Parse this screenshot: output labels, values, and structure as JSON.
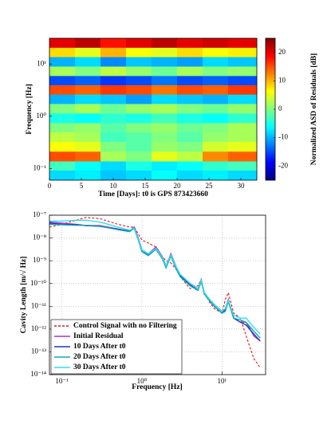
{
  "chart_data": [
    {
      "type": "heatmap",
      "xlabel": "Time [Days]: t0 is GPS 873423660",
      "ylabel": "Frequency [Hz]",
      "colorbar_label": "Normalized ASD of Residuals [dB]",
      "x": [
        2,
        6,
        10,
        14,
        18,
        22,
        26,
        30
      ],
      "y": [
        25.1,
        16.6,
        11,
        7.2,
        4.8,
        3.2,
        2.1,
        1.4,
        0.91,
        0.6,
        0.4,
        0.26,
        0.17,
        0.11,
        0.076
      ],
      "z": [
        [
          20,
          22,
          18,
          20,
          22,
          20,
          21,
          20
        ],
        [
          8,
          5,
          10,
          6,
          5,
          8,
          6,
          7
        ],
        [
          -10,
          -8,
          -12,
          -9,
          -10,
          -11,
          -8,
          -9
        ],
        [
          2,
          0,
          3,
          1,
          -1,
          2,
          0,
          1
        ],
        [
          -15,
          -14,
          -16,
          -15,
          -13,
          -15,
          -14,
          -15
        ],
        [
          15,
          14,
          16,
          15,
          13,
          15,
          14,
          16
        ],
        [
          -10,
          -8,
          -9,
          -11,
          -8,
          -9,
          -10,
          -8
        ],
        [
          0,
          2,
          -1,
          1,
          2,
          0,
          -1,
          1
        ],
        [
          -5,
          -6,
          -4,
          -5,
          -3,
          -5,
          -6,
          -4
        ],
        [
          0,
          1,
          -2,
          0,
          1,
          -1,
          0,
          2
        ],
        [
          3,
          2,
          -3,
          -2,
          0,
          -2,
          1,
          2
        ],
        [
          6,
          5,
          0,
          -2,
          1,
          0,
          4,
          5
        ],
        [
          15,
          14,
          2,
          0,
          5,
          3,
          12,
          14
        ],
        [
          -3,
          -6,
          -8,
          -5,
          -7,
          -6,
          -4,
          -3
        ],
        [
          -8,
          -7,
          -9,
          -8,
          -6,
          -8,
          -7,
          -8
        ]
      ],
      "xlim": [
        0,
        32.5
      ],
      "ylim": [
        0.06,
        31
      ],
      "ylog": true,
      "xticks": [
        0,
        5,
        10,
        15,
        20,
        25,
        30
      ],
      "yticks": [
        {
          "value": 10,
          "label": "10¹"
        },
        {
          "value": 1,
          "label": "10⁰"
        },
        {
          "value": 0.1,
          "label": "10⁻¹"
        }
      ],
      "clim": [
        -25,
        25
      ],
      "cticks": [
        -20,
        -10,
        0,
        10,
        20
      ],
      "colormap": "jet"
    },
    {
      "type": "line",
      "xlabel": "Frequency [Hz]",
      "ylabel": "Cavity Length [m/√ Hz]",
      "x": [
        0.07,
        0.1,
        0.15,
        0.2,
        0.3,
        0.5,
        0.7,
        0.8,
        0.9,
        1.0,
        1.2,
        1.5,
        1.8,
        2.0,
        2.3,
        2.7,
        3,
        4,
        5,
        5.5,
        6,
        7,
        8,
        10,
        11,
        12,
        14,
        17,
        20,
        25,
        30
      ],
      "series": [
        {
          "name": "Control Signal with no Filtering",
          "color": "#e8141c",
          "style": "dashed",
          "values": [
            3e-08,
            4e-08,
            6e-08,
            8e-08,
            7e-08,
            4e-08,
            3e-08,
            3e-08,
            1.5e-08,
            8e-09,
            6e-09,
            4e-09,
            1.5e-09,
            1e-09,
            8e-10,
            4e-10,
            2e-10,
            6e-11,
            8e-11,
            1.5e-10,
            4e-11,
            1.5e-11,
            8e-12,
            5e-12,
            2e-11,
            4e-11,
            5e-12,
            3e-12,
            5e-13,
            5e-14,
            2e-14
          ]
        },
        {
          "name": "Initial Residual",
          "color": "#b030c0",
          "style": "solid",
          "values": [
            5e-08,
            4.5e-08,
            4e-08,
            3.5e-08,
            3.5e-08,
            2.5e-08,
            2e-08,
            3e-08,
            1e-08,
            3e-09,
            2e-09,
            4e-09,
            1.5e-09,
            6e-10,
            2e-09,
            5e-10,
            2.5e-10,
            1e-10,
            6e-11,
            1.5e-10,
            4e-11,
            2e-11,
            1.2e-11,
            6e-12,
            8e-12,
            2e-11,
            3e-12,
            2e-12,
            2e-12,
            5e-13,
            3e-13
          ]
        },
        {
          "name": "10 Days After t0",
          "color": "#2030d0",
          "style": "solid",
          "values": [
            4.5e-08,
            4e-08,
            3.8e-08,
            3.5e-08,
            3.2e-08,
            2.4e-08,
            2e-08,
            2.8e-08,
            9e-09,
            2.5e-09,
            1.8e-09,
            3.5e-09,
            1.3e-09,
            5e-10,
            1.8e-09,
            4.5e-10,
            2.2e-10,
            9e-11,
            5e-11,
            1.3e-10,
            3.5e-11,
            1.8e-11,
            1e-11,
            5e-12,
            7e-12,
            1.8e-11,
            3e-12,
            2e-12,
            1.5e-12,
            6e-13,
            3e-13
          ]
        },
        {
          "name": "20 Days After t0",
          "color": "#10a8b0",
          "style": "solid",
          "values": [
            4e-08,
            3.8e-08,
            3.6e-08,
            3.6e-08,
            3.3e-08,
            2.3e-08,
            1.9e-08,
            2.6e-08,
            8e-09,
            2.5e-09,
            1.7e-09,
            3.2e-09,
            1.2e-09,
            5e-10,
            1.6e-09,
            4e-10,
            2e-10,
            8e-11,
            5e-11,
            1.2e-10,
            3.5e-11,
            1.7e-11,
            1e-11,
            5e-12,
            6e-12,
            1.6e-11,
            3e-12,
            2.5e-12,
            2e-12,
            8e-13,
            4e-13
          ]
        },
        {
          "name": "30 Days After t0",
          "color": "#30e0f0",
          "style": "solid",
          "values": [
            5.5e-08,
            5.5e-08,
            6e-08,
            6e-08,
            5e-08,
            3e-08,
            2.2e-08,
            2.7e-08,
            9e-09,
            3e-09,
            2e-09,
            3.5e-09,
            1.4e-09,
            6e-10,
            1.8e-09,
            5e-10,
            2.5e-10,
            1e-10,
            6e-11,
            1.4e-10,
            4e-11,
            2e-11,
            1.2e-11,
            6e-12,
            8e-12,
            1.8e-11,
            4e-12,
            3e-12,
            3e-12,
            1.2e-12,
            6e-13
          ]
        }
      ],
      "xlim": [
        0.07,
        35
      ],
      "ylim": [
        1e-14,
        1e-07
      ],
      "xlog": true,
      "ylog": true,
      "xticks": [
        {
          "value": 0.1,
          "label": "10⁻¹"
        },
        {
          "value": 1,
          "label": "10⁰"
        },
        {
          "value": 10,
          "label": "10¹"
        }
      ],
      "yticks": [
        {
          "value": 1e-07,
          "label": "10⁻⁷"
        },
        {
          "value": 1e-08,
          "label": "10⁻⁸"
        },
        {
          "value": 1e-09,
          "label": "10⁻⁹"
        },
        {
          "value": 1e-10,
          "label": "10⁻¹⁰"
        },
        {
          "value": 1e-11,
          "label": "10⁻¹¹"
        },
        {
          "value": 1e-12,
          "label": "10⁻¹²"
        },
        {
          "value": 1e-13,
          "label": "10⁻¹³"
        },
        {
          "value": 1e-14,
          "label": "10⁻¹⁴"
        }
      ],
      "grid": true,
      "legend": "lower left"
    }
  ]
}
